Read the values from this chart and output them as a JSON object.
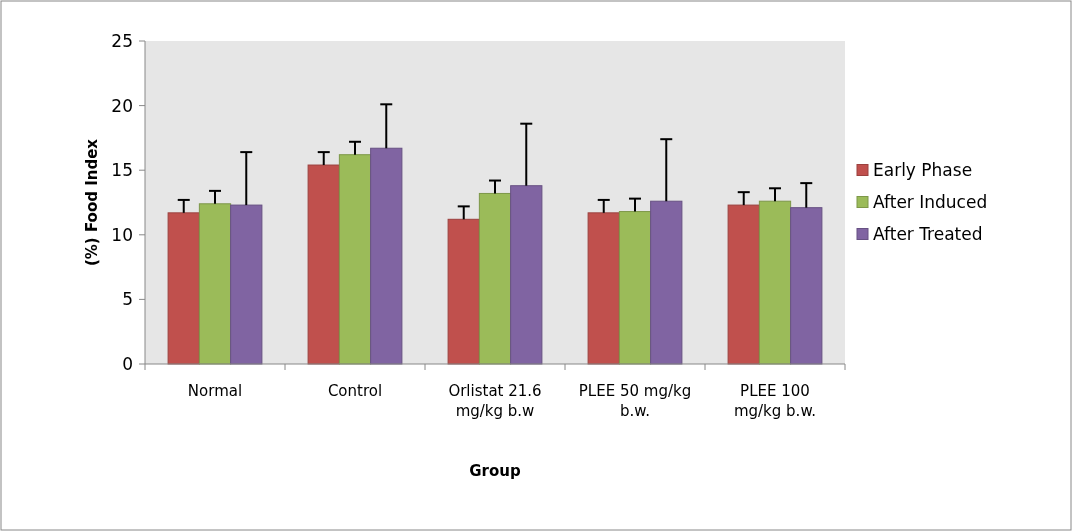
{
  "chart_data": {
    "type": "bar",
    "xlabel": "Group",
    "ylabel": "(%) Food Index",
    "categories": [
      "Normal",
      "Control",
      "Orlistat 21.6 mg/kg b.w",
      "PLEE 50 mg/kg b.w.",
      "PLEE 100 mg/kg b.w."
    ],
    "series": [
      {
        "name": "Early Phase",
        "color": "#c0504d",
        "values": [
          11.7,
          15.4,
          11.2,
          11.7,
          12.3
        ],
        "errors": [
          [
            11.7,
            12.7
          ],
          [
            15.4,
            16.4
          ],
          [
            11.2,
            12.2
          ],
          [
            11.7,
            12.7
          ],
          [
            12.3,
            13.3
          ]
        ]
      },
      {
        "name": "After Induced",
        "color": "#9bbb59",
        "values": [
          12.4,
          16.2,
          13.2,
          11.8,
          12.6
        ],
        "errors": [
          [
            12.4,
            13.4
          ],
          [
            16.2,
            17.2
          ],
          [
            13.2,
            14.2
          ],
          [
            11.8,
            12.8
          ],
          [
            12.6,
            13.6
          ]
        ]
      },
      {
        "name": "After Treated",
        "color": "#8064a2",
        "values": [
          12.3,
          16.7,
          13.8,
          12.6,
          12.1
        ],
        "errors": [
          [
            12.3,
            16.4
          ],
          [
            16.7,
            20.1
          ],
          [
            13.8,
            18.6
          ],
          [
            12.6,
            17.4
          ],
          [
            12.1,
            14.0
          ]
        ]
      }
    ],
    "ylim": [
      0,
      25
    ],
    "yticks": [
      0,
      5,
      10,
      15,
      20,
      25
    ],
    "grid": false,
    "legend": "right"
  }
}
